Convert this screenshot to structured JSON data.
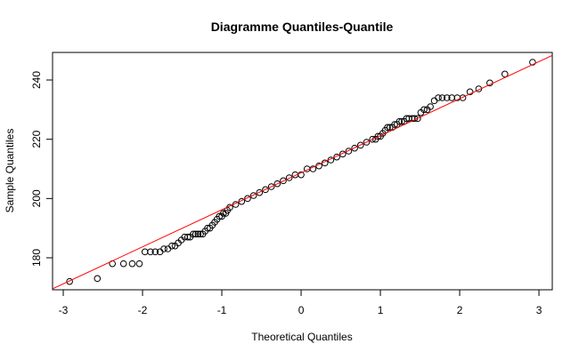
{
  "chart_data": {
    "type": "scatter",
    "title": "Diagramme Quantiles-Quantile",
    "x_label": "Theoretical Quantiles",
    "y_label": "Sample Quantiles",
    "x": [
      -2.92,
      -2.57,
      -2.38,
      -2.24,
      -2.13,
      -2.04,
      -1.97,
      -1.9,
      -1.84,
      -1.78,
      -1.73,
      -1.68,
      -1.63,
      -1.59,
      -1.55,
      -1.51,
      -1.47,
      -1.43,
      -1.4,
      -1.36,
      -1.33,
      -1.3,
      -1.27,
      -1.24,
      -1.21,
      -1.18,
      -1.15,
      -1.12,
      -1.09,
      -1.06,
      -1.03,
      -1.0,
      -0.98,
      -0.95,
      -0.93,
      -0.9,
      -0.825,
      -0.75,
      -0.675,
      -0.6,
      -0.525,
      -0.45,
      -0.375,
      -0.3,
      -0.225,
      -0.15,
      -0.075,
      0,
      0.075,
      0.15,
      0.225,
      0.3,
      0.375,
      0.45,
      0.525,
      0.6,
      0.675,
      0.75,
      0.825,
      0.9,
      0.94,
      0.97,
      1.0,
      1.03,
      1.06,
      1.09,
      1.12,
      1.15,
      1.18,
      1.21,
      1.24,
      1.27,
      1.3,
      1.33,
      1.36,
      1.4,
      1.43,
      1.47,
      1.51,
      1.55,
      1.59,
      1.63,
      1.68,
      1.73,
      1.78,
      1.84,
      1.9,
      1.97,
      2.04,
      2.13,
      2.24,
      2.38,
      2.57,
      2.92
    ],
    "values": [
      172,
      173,
      178,
      178,
      178,
      178,
      182,
      182,
      182,
      182,
      183,
      183,
      184,
      184,
      185,
      186,
      187,
      187,
      187,
      188,
      188,
      188,
      188,
      188,
      189,
      190,
      190,
      191,
      192,
      193,
      194,
      194,
      195,
      195,
      196,
      197,
      198,
      199,
      200,
      201,
      202,
      203,
      204,
      205,
      206,
      207,
      208,
      208,
      210,
      210,
      211,
      212,
      213,
      214,
      215,
      216,
      217,
      218,
      219,
      220,
      220,
      221,
      221,
      222,
      223,
      224,
      224,
      224,
      225,
      225,
      226,
      226,
      226,
      227,
      227,
      227,
      227,
      227,
      229,
      230,
      230,
      231,
      233,
      234,
      234,
      234,
      234,
      234,
      234,
      236,
      237,
      239,
      242,
      246
    ],
    "color": "#000000",
    "reference_line": {
      "intercept": 208.7,
      "slope": 12.5,
      "color": "#ff0000"
    },
    "xlim": [
      -3.135,
      3.168
    ],
    "ylim": [
      169.2,
      249.3
    ],
    "xticks": [
      -3,
      -2,
      -1,
      0,
      1,
      2,
      3
    ],
    "yticks": [
      180,
      200,
      220,
      240
    ]
  }
}
